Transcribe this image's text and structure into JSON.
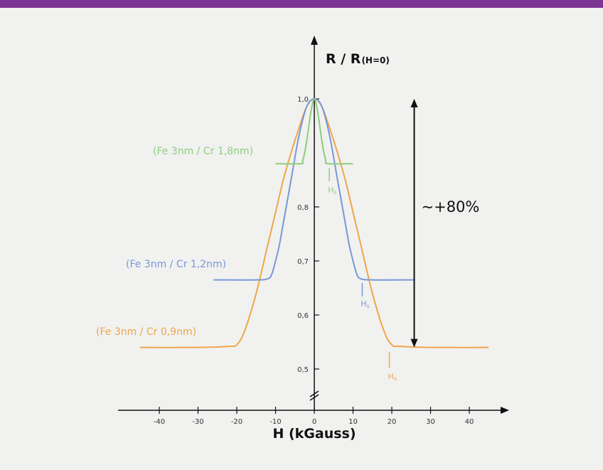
{
  "chart_data": {
    "type": "line",
    "title": "",
    "xlabel": "H (kGauss)",
    "ylabel_main": "R / R",
    "ylabel_sub": "(H=0)",
    "xlim": [
      -50,
      50
    ],
    "ylim": [
      0.45,
      1.05
    ],
    "grid": false,
    "x_ticks": [
      -40,
      -30,
      -20,
      -10,
      0,
      10,
      20,
      30,
      40
    ],
    "y_ticks": [
      {
        "value": 0.5,
        "label": "0,5"
      },
      {
        "value": 0.6,
        "label": "0,6"
      },
      {
        "value": 0.7,
        "label": "0,7"
      },
      {
        "value": 0.8,
        "label": "0,8"
      },
      {
        "value": 1.0,
        "label": "1,0"
      }
    ],
    "series": [
      {
        "name": "(Fe 3nm / Cr 0,9nm)",
        "color": "#f0a64a",
        "x": [
          -45,
          -30,
          -22,
          -20,
          -18,
          -15,
          -12,
          -10,
          -8,
          -6,
          -4,
          -2,
          0,
          2,
          4,
          6,
          8,
          10,
          12,
          15,
          18,
          20,
          22,
          30,
          45
        ],
        "y": [
          0.54,
          0.54,
          0.542,
          0.545,
          0.57,
          0.64,
          0.73,
          0.79,
          0.85,
          0.9,
          0.945,
          0.985,
          1.0,
          0.985,
          0.945,
          0.9,
          0.85,
          0.79,
          0.73,
          0.64,
          0.57,
          0.545,
          0.542,
          0.54,
          0.54
        ],
        "hs_label": "H",
        "hs_sub": "s",
        "hs_x": 19
      },
      {
        "name": "(Fe 3nm / Cr 1,2nm)",
        "color": "#7799d6",
        "x": [
          -26,
          -15,
          -12,
          -11,
          -10,
          -9,
          -8,
          -6,
          -4,
          -2,
          0,
          2,
          4,
          6,
          8,
          9,
          10,
          11,
          12,
          15,
          26
        ],
        "y": [
          0.665,
          0.665,
          0.667,
          0.675,
          0.7,
          0.73,
          0.77,
          0.85,
          0.93,
          0.985,
          1.0,
          0.985,
          0.93,
          0.85,
          0.77,
          0.73,
          0.7,
          0.675,
          0.667,
          0.665,
          0.665
        ],
        "hs_label": "H",
        "hs_sub": "s",
        "hs_x": 12
      },
      {
        "name": "(Fe 3nm / Cr 1,8nm)",
        "color": "#8fce7e",
        "x": [
          -10,
          -3.5,
          -3,
          -2.5,
          -2,
          -1.5,
          -1,
          -0.5,
          0,
          0.5,
          1,
          1.5,
          2,
          2.5,
          3,
          3.5,
          10
        ],
        "y": [
          0.88,
          0.88,
          0.885,
          0.9,
          0.92,
          0.945,
          0.97,
          0.99,
          1.0,
          0.99,
          0.97,
          0.945,
          0.92,
          0.9,
          0.885,
          0.88,
          0.88
        ],
        "hs_label": "H",
        "hs_sub": "s",
        "hs_x": 3.5
      }
    ],
    "annotation": {
      "text": "~+80%",
      "x": 30,
      "y_top": 1.0,
      "y_bottom": 0.54
    }
  },
  "colors": {
    "top_bar": "#7c3594",
    "background": "#f1f1f0",
    "axis": "#111111"
  }
}
